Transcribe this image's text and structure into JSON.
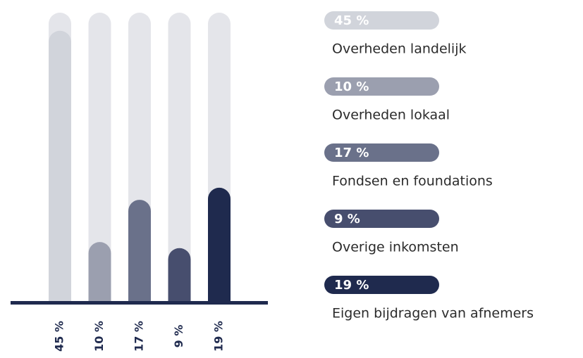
{
  "chart_data": {
    "type": "bar",
    "categories": [
      "Overheden landelijk",
      "Overheden lokaal",
      "Fondsen en foundations",
      "Overige inkomsten",
      "Eigen bijdragen van afnemers"
    ],
    "values": [
      45,
      10,
      17,
      9,
      19
    ],
    "value_labels": [
      "45 %",
      "10 %",
      "17 %",
      "9 %",
      "19 %"
    ],
    "colors": [
      "#d1d4db",
      "#9b9faf",
      "#6a718a",
      "#474e6e",
      "#1f2a4e"
    ],
    "ylim": [
      0,
      48
    ]
  }
}
